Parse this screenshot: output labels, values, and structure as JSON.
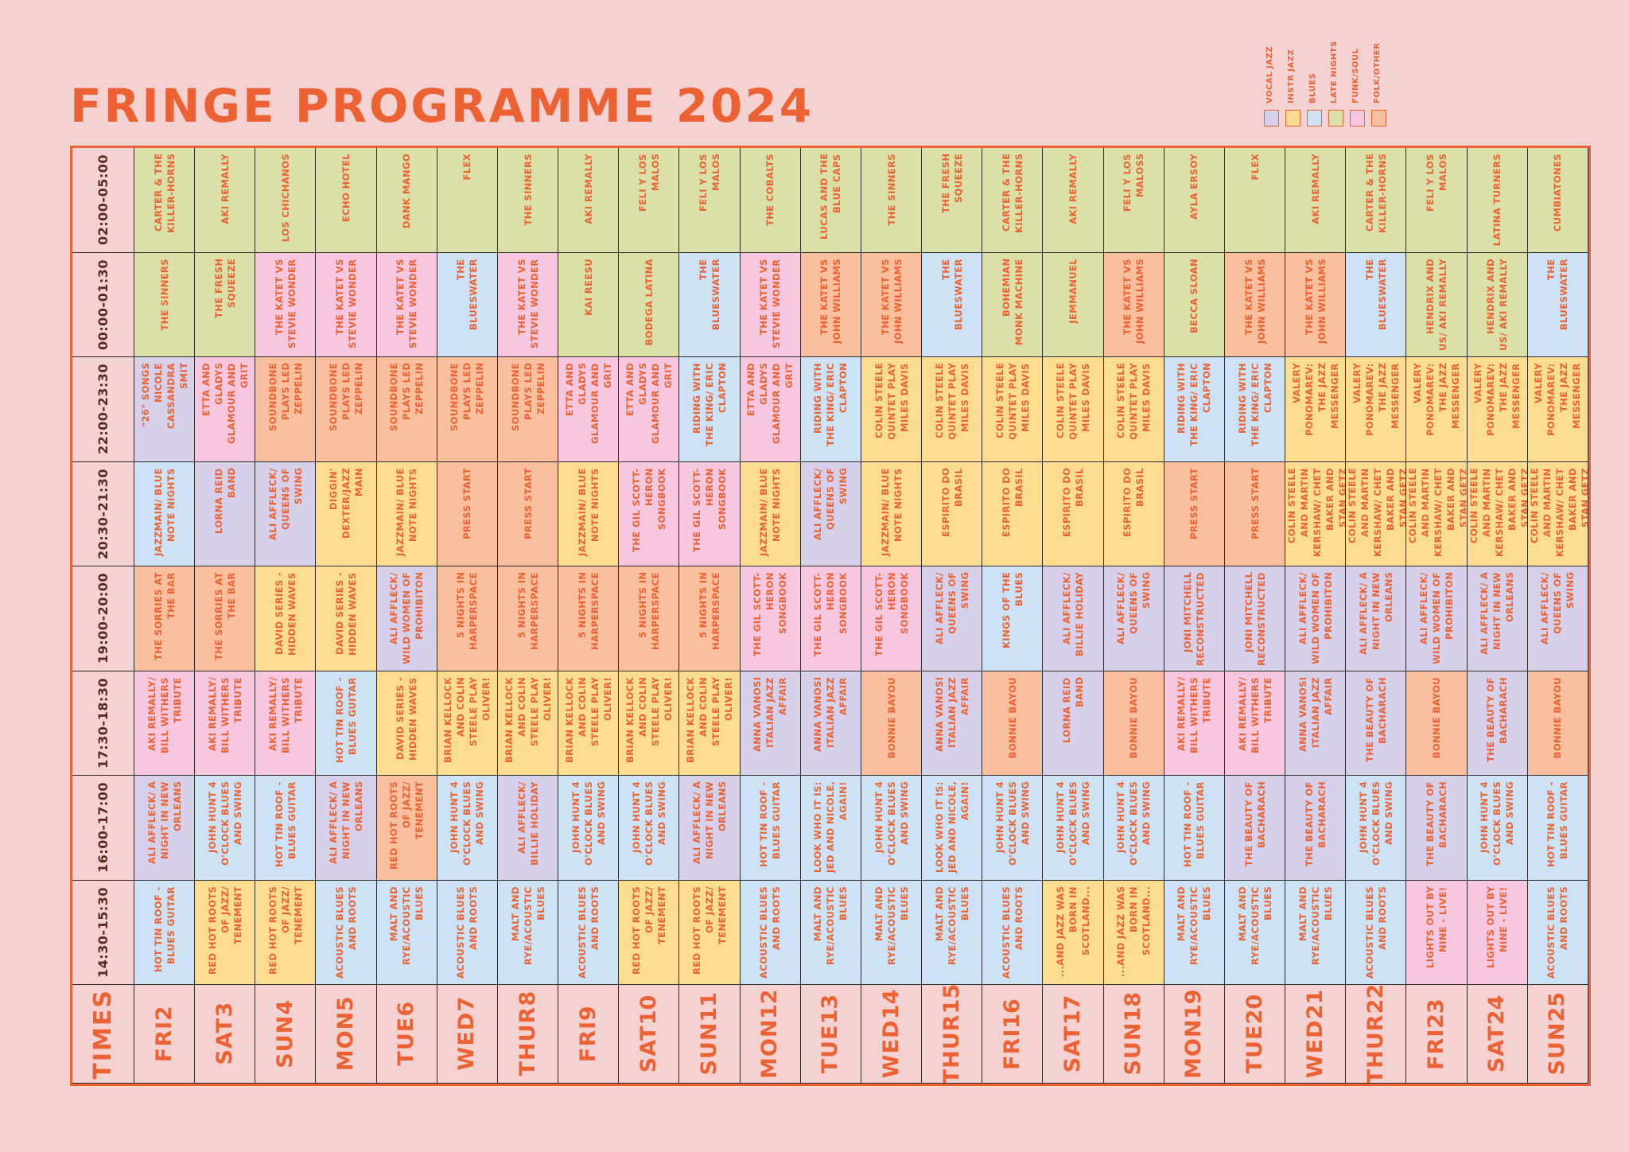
{
  "title": "FRINGE PROGRAMME 2024",
  "colors": {
    "accent": "#ec6232",
    "background": "#f5d2d2",
    "vocal": "#d6d0ea",
    "instr": "#fcdc8e",
    "blues": "#cde3f5",
    "late": "#dae0a8",
    "funk": "#f7c7e0",
    "folk": "#f9bf9f"
  },
  "legend": [
    {
      "label": "VOCAL JAZZ",
      "key": "vocal"
    },
    {
      "label": "INSTR JAZZ",
      "key": "instr"
    },
    {
      "label": "BLUES",
      "key": "blues"
    },
    {
      "label": "LATE NIGHTS",
      "key": "late"
    },
    {
      "label": "FUNK/SOUL",
      "key": "funk"
    },
    {
      "label": "FOLK/OTHER",
      "key": "folk"
    }
  ],
  "times_label": "TIMES",
  "times": [
    "02:00-05:00",
    "00:00-01:30",
    "22:00-23:30",
    "20:30-21:30",
    "19:00-20:00",
    "17:30-18:30",
    "16:00-17:00",
    "14:30-15:30"
  ],
  "days": [
    {
      "dow": "FRI",
      "num": "2"
    },
    {
      "dow": "SAT",
      "num": "3"
    },
    {
      "dow": "SUN",
      "num": "4"
    },
    {
      "dow": "MON",
      "num": "5"
    },
    {
      "dow": "TUE",
      "num": "6"
    },
    {
      "dow": "WED",
      "num": "7"
    },
    {
      "dow": "THUR",
      "num": "8"
    },
    {
      "dow": "FRI",
      "num": "9"
    },
    {
      "dow": "SAT",
      "num": "10"
    },
    {
      "dow": "SUN",
      "num": "11"
    },
    {
      "dow": "MON",
      "num": "12"
    },
    {
      "dow": "TUE",
      "num": "13"
    },
    {
      "dow": "WED",
      "num": "14"
    },
    {
      "dow": "THUR",
      "num": "15"
    },
    {
      "dow": "FRI",
      "num": "16"
    },
    {
      "dow": "SAT",
      "num": "17"
    },
    {
      "dow": "SUN",
      "num": "18"
    },
    {
      "dow": "MON",
      "num": "19"
    },
    {
      "dow": "TUE",
      "num": "20"
    },
    {
      "dow": "WED",
      "num": "21"
    },
    {
      "dow": "THUR",
      "num": "22"
    },
    {
      "dow": "FRI",
      "num": "23"
    },
    {
      "dow": "SAT",
      "num": "24"
    },
    {
      "dow": "SUN",
      "num": "25"
    }
  ],
  "schedule": [
    [
      {
        "t": "Carter & the Killer-Horns",
        "c": "late"
      },
      {
        "t": "Aki Remally",
        "c": "late"
      },
      {
        "t": "Los Chichanos",
        "c": "late"
      },
      {
        "t": "Echo Hotel",
        "c": "late"
      },
      {
        "t": "Dank Mango",
        "c": "late"
      },
      {
        "t": "Flex",
        "c": "late"
      },
      {
        "t": "The Sinners",
        "c": "late"
      },
      {
        "t": "Aki Remally",
        "c": "late"
      },
      {
        "t": "Feli y los Malos",
        "c": "late"
      },
      {
        "t": "Feli y los Malos",
        "c": "late"
      },
      {
        "t": "The Cobalts",
        "c": "late"
      },
      {
        "t": "Lucas and the Blue Caps",
        "c": "late"
      },
      {
        "t": "The Sinners",
        "c": "late"
      },
      {
        "t": "The Fresh Squeeze",
        "c": "late"
      },
      {
        "t": "Carter & the Killer-Horns",
        "c": "late"
      },
      {
        "t": "Aki Remally",
        "c": "late"
      },
      {
        "t": "Feli y los Maloss",
        "c": "late"
      },
      {
        "t": "Ayla Ersoy",
        "c": "late"
      },
      {
        "t": "Flex",
        "c": "late"
      },
      {
        "t": "Aki Remally",
        "c": "late"
      },
      {
        "t": "Carter & the Killer-Horns",
        "c": "late"
      },
      {
        "t": "Feli y los Malos",
        "c": "late"
      },
      {
        "t": "Latina Turners",
        "c": "late"
      },
      {
        "t": "Cumbiatones",
        "c": "late"
      }
    ],
    [
      {
        "t": "The Sinners",
        "c": "late"
      },
      {
        "t": "The Fresh Squeeze",
        "c": "late"
      },
      {
        "t": "The Katet vs Stevie Wonder",
        "c": "funk"
      },
      {
        "t": "The Katet vs Stevie Wonder",
        "c": "funk"
      },
      {
        "t": "The Katet vs Stevie Wonder",
        "c": "funk"
      },
      {
        "t": "The Blueswater",
        "c": "blues"
      },
      {
        "t": "The Katet vs Stevie Wonder",
        "c": "funk"
      },
      {
        "t": "Kai Reesu",
        "c": "late"
      },
      {
        "t": "Bodega Latina",
        "c": "late"
      },
      {
        "t": "The Blueswater",
        "c": "blues"
      },
      {
        "t": "The Katet vs Stevie Wonder",
        "c": "funk"
      },
      {
        "t": "The Katet vs John Williams",
        "c": "folk"
      },
      {
        "t": "The Katet vs John Williams",
        "c": "folk"
      },
      {
        "t": "The Blueswater",
        "c": "blues"
      },
      {
        "t": "Bohemian Monk Machine",
        "c": "late"
      },
      {
        "t": "Jemmanuel",
        "c": "late"
      },
      {
        "t": "The Katet vs John Williams",
        "c": "folk"
      },
      {
        "t": "Becca Sloan",
        "c": "late"
      },
      {
        "t": "The Katet vs John Williams",
        "c": "folk"
      },
      {
        "t": "The Katet vs John Williams",
        "c": "folk"
      },
      {
        "t": "The Blueswater",
        "c": "blues"
      },
      {
        "t": "Hendrix and Us/ Aki Remally",
        "c": "late"
      },
      {
        "t": "Hendrix and Us/ Aki Remally",
        "c": "late"
      },
      {
        "t": "The Blueswater",
        "c": "blues"
      }
    ],
    [
      {
        "t": "\"26\" Songs Nicole Cassandra Smit",
        "c": "vocal"
      },
      {
        "t": "Etta and Gladys Glamour and Grit",
        "c": "funk"
      },
      {
        "t": "Soundbone Plays Led Zeppelin",
        "c": "folk"
      },
      {
        "t": "Soundbone Plays Led Zeppelin",
        "c": "folk"
      },
      {
        "t": "Soundbone Plays Led Zeppelin",
        "c": "folk"
      },
      {
        "t": "Soundbone Plays Led Zeppelin",
        "c": "folk"
      },
      {
        "t": "Soundbone Plays Led Zeppelin",
        "c": "folk"
      },
      {
        "t": "Etta and Gladys Glamour and Grit",
        "c": "funk"
      },
      {
        "t": "Etta and Gladys Glamour and Grit",
        "c": "funk"
      },
      {
        "t": "Riding with the King/ Eric Clapton",
        "c": "blues"
      },
      {
        "t": "Etta and Gladys Glamour and Grit",
        "c": "funk"
      },
      {
        "t": "Riding with the King/ Eric Clapton",
        "c": "blues"
      },
      {
        "t": "Colin Steele Quintet Play Miles Davis",
        "c": "instr"
      },
      {
        "t": "Colin Steele Quintet Play Miles Davis",
        "c": "instr"
      },
      {
        "t": "Colin Steele Quintet Play Miles Davis",
        "c": "instr"
      },
      {
        "t": "Colin Steele Quintet Play Miles Davis",
        "c": "instr"
      },
      {
        "t": "Colin Steele Quintet Play Miles Davis",
        "c": "instr"
      },
      {
        "t": "Riding with the King/ Eric Clapton",
        "c": "blues"
      },
      {
        "t": "Riding with the King/ Eric Clapton",
        "c": "blues"
      },
      {
        "t": "Valery Ponomarev: The Jazz Messenger",
        "c": "instr"
      },
      {
        "t": "Valery Ponomarev: The Jazz Messenger",
        "c": "instr"
      },
      {
        "t": "Valery Ponomarev: The Jazz Messenger",
        "c": "instr"
      },
      {
        "t": "Valery Ponomarev: The Jazz Messenger",
        "c": "instr"
      },
      {
        "t": "Valery Ponomarev: The Jazz Messenger",
        "c": "instr"
      }
    ],
    [
      {
        "t": "Jazzmain/ Blue Note Nights",
        "c": "blues"
      },
      {
        "t": "Lorna Reid Band",
        "c": "vocal"
      },
      {
        "t": "Ali Affleck/ Queens of Swing",
        "c": "vocal"
      },
      {
        "t": "Diggin' Dexter/Jazz Main",
        "c": "instr"
      },
      {
        "t": "Jazzmain/ Blue Note Nights",
        "c": "instr"
      },
      {
        "t": "Press Start",
        "c": "folk"
      },
      {
        "t": "Press Start",
        "c": "folk"
      },
      {
        "t": "Jazzmain/ Blue Note Nights",
        "c": "instr"
      },
      {
        "t": "The Gil Scott-Heron Songbook",
        "c": "funk"
      },
      {
        "t": "The Gil Scott-Heron Songbook",
        "c": "funk"
      },
      {
        "t": "Jazzmain/ Blue Note Nights",
        "c": "instr"
      },
      {
        "t": "Ali Affleck/ Queens of Swing",
        "c": "vocal"
      },
      {
        "t": "Jazzmain/ Blue Note Nights",
        "c": "instr"
      },
      {
        "t": "Espirito do Brasil",
        "c": "instr"
      },
      {
        "t": "Espirito do Brasil",
        "c": "instr"
      },
      {
        "t": "Espirito do Brasil",
        "c": "instr"
      },
      {
        "t": "Espirito do Brasil",
        "c": "instr"
      },
      {
        "t": "Press Start",
        "c": "folk"
      },
      {
        "t": "Press Start",
        "c": "folk"
      },
      {
        "t": "Colin Steele and Martin Kershaw/ Chet Baker and Stan Getz",
        "c": "instr"
      },
      {
        "t": "Colin Steele and Martin Kershaw/ Chet Baker and Stan Getz",
        "c": "instr"
      },
      {
        "t": "Colin Steele and Martin Kershaw/ Chet Baker and Stan Getz",
        "c": "instr"
      },
      {
        "t": "Colin Steele and Martin Kershaw/ Chet Baker and Stan Getz",
        "c": "instr"
      },
      {
        "t": "Colin Steele and Martin Kershaw/ Chet Baker and Stan Getz",
        "c": "instr"
      }
    ],
    [
      {
        "t": "The Sorries at the Bar",
        "c": "folk"
      },
      {
        "t": "The Sorries at the Bar",
        "c": "folk"
      },
      {
        "t": "David Series - Hidden Waves",
        "c": "instr"
      },
      {
        "t": "David Series - Hidden Waves",
        "c": "instr"
      },
      {
        "t": "Ali Affleck/ Wild Women of Prohibiton",
        "c": "vocal"
      },
      {
        "t": "5 Nights in Harperspace",
        "c": "folk"
      },
      {
        "t": "5 Nights in Harperspace",
        "c": "folk"
      },
      {
        "t": "5 Nights in Harperspace",
        "c": "folk"
      },
      {
        "t": "5 Nights in Harperspace",
        "c": "folk"
      },
      {
        "t": "5 Nights in Harperspace",
        "c": "folk"
      },
      {
        "t": "The Gil Scott-Heron Songbook",
        "c": "funk"
      },
      {
        "t": "The Gil Scott-Heron Songbook",
        "c": "funk"
      },
      {
        "t": "The Gil Scott-Heron Songbook",
        "c": "funk"
      },
      {
        "t": "Ali Affleck/ Queens of Swing",
        "c": "vocal"
      },
      {
        "t": "Kings of the Blues",
        "c": "blues"
      },
      {
        "t": "Ali Affleck/ Billie Holiday",
        "c": "vocal"
      },
      {
        "t": "Ali Affleck/ Queens of Swing",
        "c": "vocal"
      },
      {
        "t": "Joni Mitchell Reconstructed",
        "c": "vocal"
      },
      {
        "t": "Joni Mitchell Reconstructed",
        "c": "vocal"
      },
      {
        "t": "Ali Affleck/ Wild Women of Prohibiton",
        "c": "vocal"
      },
      {
        "t": "Ali Affleck/ A Night in New Orleans",
        "c": "vocal"
      },
      {
        "t": "Ali Affleck/ Wild Women of Prohibiton",
        "c": "vocal"
      },
      {
        "t": "Ali Affleck/ A Night in New Orleans",
        "c": "vocal"
      },
      {
        "t": "Ali Affleck/ Queens of Swing",
        "c": "vocal"
      }
    ],
    [
      {
        "t": "Aki Remally/ Bill Withers Tribute",
        "c": "funk"
      },
      {
        "t": "Aki Remally/ Bill Withers Tribute",
        "c": "funk"
      },
      {
        "t": "Aki Remally/ Bill Withers Tribute",
        "c": "funk"
      },
      {
        "t": "Hot Tin Roof - Blues Guitar",
        "c": "blues"
      },
      {
        "t": "David Series - Hidden Waves",
        "c": "instr"
      },
      {
        "t": "Brian Kellock and Colin Steele Play Oliver!",
        "c": "instr"
      },
      {
        "t": "Brian Kellock and Colin Steele Play Oliver!",
        "c": "instr"
      },
      {
        "t": "Brian Kellock and Colin Steele Play Oliver!",
        "c": "instr"
      },
      {
        "t": "Brian Kellock and Colin Steele Play Oliver!",
        "c": "instr"
      },
      {
        "t": "Brian Kellock and Colin Steele Play Oliver!",
        "c": "instr"
      },
      {
        "t": "Anna Vanosi Italian Jazz Affair",
        "c": "vocal"
      },
      {
        "t": "Anna Vanosi Italian Jazz Affair",
        "c": "vocal"
      },
      {
        "t": "Bonnie Bayou",
        "c": "folk"
      },
      {
        "t": "Anna Vanosi Italian Jazz Affair",
        "c": "vocal"
      },
      {
        "t": "Bonnie Bayou",
        "c": "folk"
      },
      {
        "t": "Lorna Reid Band",
        "c": "vocal"
      },
      {
        "t": "Bonnie Bayou",
        "c": "folk"
      },
      {
        "t": "Aki Remally/ Bill Withers Tribute",
        "c": "funk"
      },
      {
        "t": "Aki Remally/ Bill Withers Tribute",
        "c": "funk"
      },
      {
        "t": "Anna Vanosi Italian Jazz Affair",
        "c": "vocal"
      },
      {
        "t": "The Beauty of Bacharach",
        "c": "vocal"
      },
      {
        "t": "Bonnie Bayou",
        "c": "folk"
      },
      {
        "t": "The Beauty of Bacharach",
        "c": "vocal"
      },
      {
        "t": "Bonnie Bayou",
        "c": "folk"
      }
    ],
    [
      {
        "t": "Ali Affleck/ A Night in New Orleans",
        "c": "vocal"
      },
      {
        "t": "John Hunt 4 O'Clock Blues and Swing",
        "c": "blues"
      },
      {
        "t": "Hot Tin Roof - Blues Guitar",
        "c": "blues"
      },
      {
        "t": "Ali Affleck/ A Night in New Orleans",
        "c": "vocal"
      },
      {
        "t": "Red Hot Roots of Jazz/ Tenement",
        "c": "folk"
      },
      {
        "t": "John Hunt 4 O'Clock Blues and Swing",
        "c": "blues"
      },
      {
        "t": "Ali Affleck/ Billie Holiday",
        "c": "vocal"
      },
      {
        "t": "John Hunt 4 O'Clock Blues and Swing",
        "c": "blues"
      },
      {
        "t": "John Hunt 4 O'Clock Blues and Swing",
        "c": "blues"
      },
      {
        "t": "Ali Affleck/ A Night in New Orleans",
        "c": "vocal"
      },
      {
        "t": "Hot Tin Roof - Blues Guitar",
        "c": "blues"
      },
      {
        "t": "Look Who It Is: Jed and Nicole, Again!",
        "c": "blues"
      },
      {
        "t": "John Hunt 4 O'Clock Blues and Swing",
        "c": "blues"
      },
      {
        "t": "Look Who It Is: Jed and Nicole, Again!",
        "c": "blues"
      },
      {
        "t": "John Hunt 4 O'Clock Blues and Swing",
        "c": "blues"
      },
      {
        "t": "John Hunt 4 O'Clock Blues and Swing",
        "c": "blues"
      },
      {
        "t": "John Hunt 4 O'Clock Blues and Swing",
        "c": "blues"
      },
      {
        "t": "Hot Tin Roof - Blues Guitar",
        "c": "blues"
      },
      {
        "t": "The Beauty of Bacharach",
        "c": "vocal"
      },
      {
        "t": "The Beauty of Bacharach",
        "c": "vocal"
      },
      {
        "t": "John Hunt 4 O'Clock Blues and Swing",
        "c": "blues"
      },
      {
        "t": "The Beauty of Bacharach",
        "c": "vocal"
      },
      {
        "t": "John Hunt 4 O'Clock Blues and Swing",
        "c": "blues"
      },
      {
        "t": "Hot Tin Roof - Blues Guitar",
        "c": "blues"
      }
    ],
    [
      {
        "t": "Hot Tin Roof - Blues Guitar",
        "c": "blues"
      },
      {
        "t": "Red Hot Roots of Jazz/ Tenement",
        "c": "instr"
      },
      {
        "t": "Red Hot Roots of Jazz/ Tenement",
        "c": "instr"
      },
      {
        "t": "Acoustic Blues and Roots",
        "c": "blues"
      },
      {
        "t": "Malt and Rye/Acoustic Blues",
        "c": "blues"
      },
      {
        "t": "Acoustic Blues and Roots",
        "c": "blues"
      },
      {
        "t": "Malt and Rye/Acoustic Blues",
        "c": "blues"
      },
      {
        "t": "Acoustic Blues and Roots",
        "c": "blues"
      },
      {
        "t": "Red Hot Roots of Jazz/ Tenement",
        "c": "instr"
      },
      {
        "t": "Red Hot Roots of Jazz/ Tenement",
        "c": "instr"
      },
      {
        "t": "Acoustic Blues and Roots",
        "c": "blues"
      },
      {
        "t": "Malt and Rye/Acoustic Blues",
        "c": "blues"
      },
      {
        "t": "Malt and Rye/Acoustic Blues",
        "c": "blues"
      },
      {
        "t": "Malt and Rye/Acoustic Blues",
        "c": "blues"
      },
      {
        "t": "Acoustic Blues and Roots",
        "c": "blues"
      },
      {
        "t": "...And Jazz Was Born in Scotland...",
        "c": "instr"
      },
      {
        "t": "...And Jazz Was Born in Scotland...",
        "c": "instr"
      },
      {
        "t": "Malt and Rye/Acoustic Blues",
        "c": "blues"
      },
      {
        "t": "Malt and Rye/Acoustic Blues",
        "c": "blues"
      },
      {
        "t": "Malt and Rye/Acoustic Blues",
        "c": "blues"
      },
      {
        "t": "Acoustic Blues and Roots",
        "c": "blues"
      },
      {
        "t": "Lights Out by Nine - Live!",
        "c": "funk"
      },
      {
        "t": "Lights Out by Nine - Live!",
        "c": "funk"
      },
      {
        "t": "Acoustic Blues and Roots",
        "c": "blues"
      }
    ]
  ]
}
